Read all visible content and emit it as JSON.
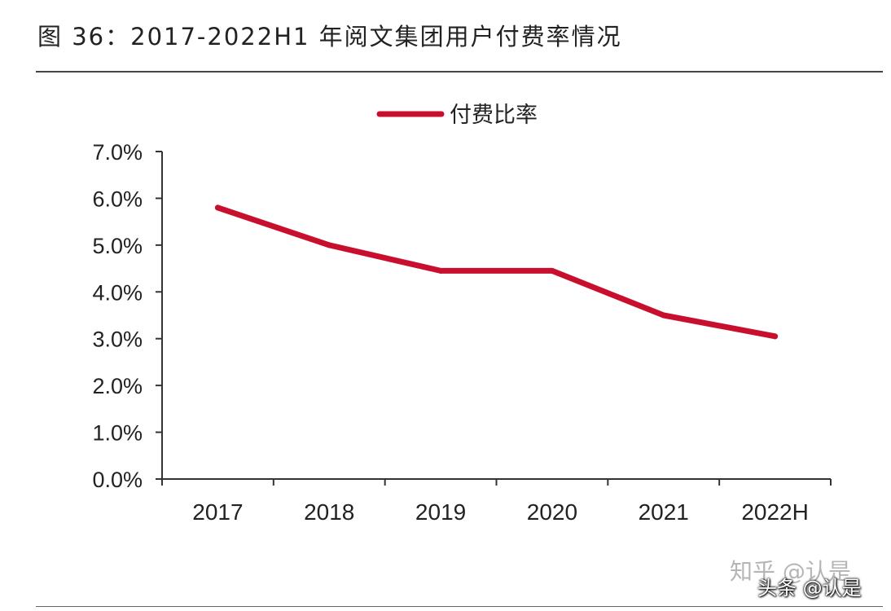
{
  "figure": {
    "title": "图 36：2017-2022H1 年阅文集团用户付费率情况"
  },
  "watermarks": {
    "zhihu": "知乎 @认是",
    "toutiao": "头条 @认是"
  },
  "colors": {
    "series": "#c8102e",
    "axis": "#333333",
    "text": "#222222"
  },
  "chart_data": {
    "type": "line",
    "title": "",
    "xlabel": "",
    "ylabel": "",
    "categories": [
      "2017",
      "2018",
      "2019",
      "2020",
      "2021",
      "2022H"
    ],
    "series": [
      {
        "name": "付费比率",
        "values": [
          5.8,
          5.0,
          4.45,
          4.45,
          3.5,
          3.05
        ]
      }
    ],
    "ylim": [
      0,
      7
    ],
    "yticks": [
      "0.0%",
      "1.0%",
      "2.0%",
      "3.0%",
      "4.0%",
      "5.0%",
      "6.0%",
      "7.0%"
    ],
    "y_unit": "%",
    "legend_position": "top-center",
    "grid": false
  }
}
